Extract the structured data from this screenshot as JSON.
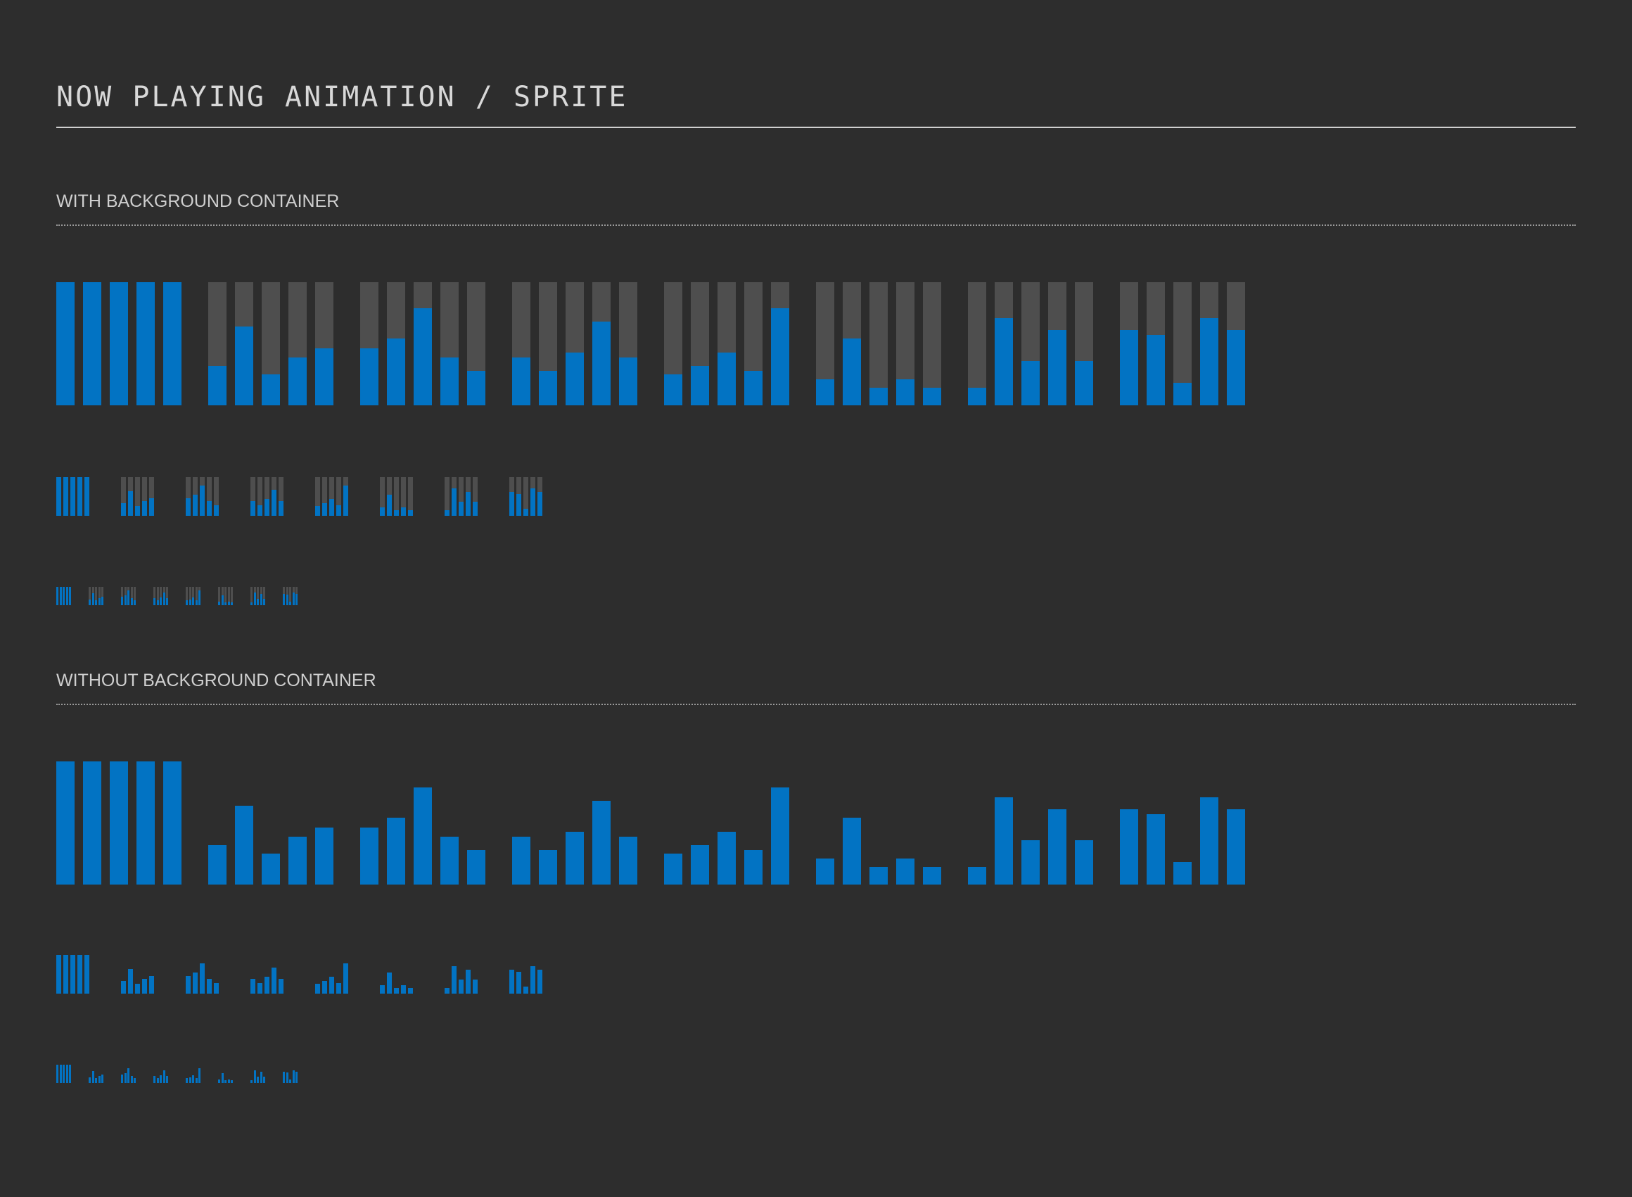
{
  "title": "NOW PLAYING ANIMATION / SPRITE",
  "colors": {
    "background": "#2d2d2d",
    "bar": "#0273c3",
    "container": "#4e4e4e",
    "text": "#d8d8d8"
  },
  "sections": [
    {
      "label": "WITH BACKGROUND  CONTAINER",
      "has_container": true
    },
    {
      "label": "WITHOUT BACKGROUND  CONTAINER",
      "has_container": false
    }
  ],
  "sizes": [
    "large",
    "medium",
    "small"
  ],
  "frames": [
    [
      1,
      1,
      1,
      1,
      1
    ],
    [
      0.32,
      0.64,
      0.25,
      0.39,
      0.46
    ],
    [
      0.46,
      0.54,
      0.79,
      0.39,
      0.28
    ],
    [
      0.39,
      0.28,
      0.43,
      0.68,
      0.39
    ],
    [
      0.25,
      0.32,
      0.43,
      0.28,
      0.79
    ],
    [
      0.21,
      0.54,
      0.14,
      0.21,
      0.14
    ],
    [
      0.14,
      0.71,
      0.36,
      0.61,
      0.36
    ],
    [
      0.61,
      0.57,
      0.18,
      0.71,
      0.61
    ]
  ]
}
